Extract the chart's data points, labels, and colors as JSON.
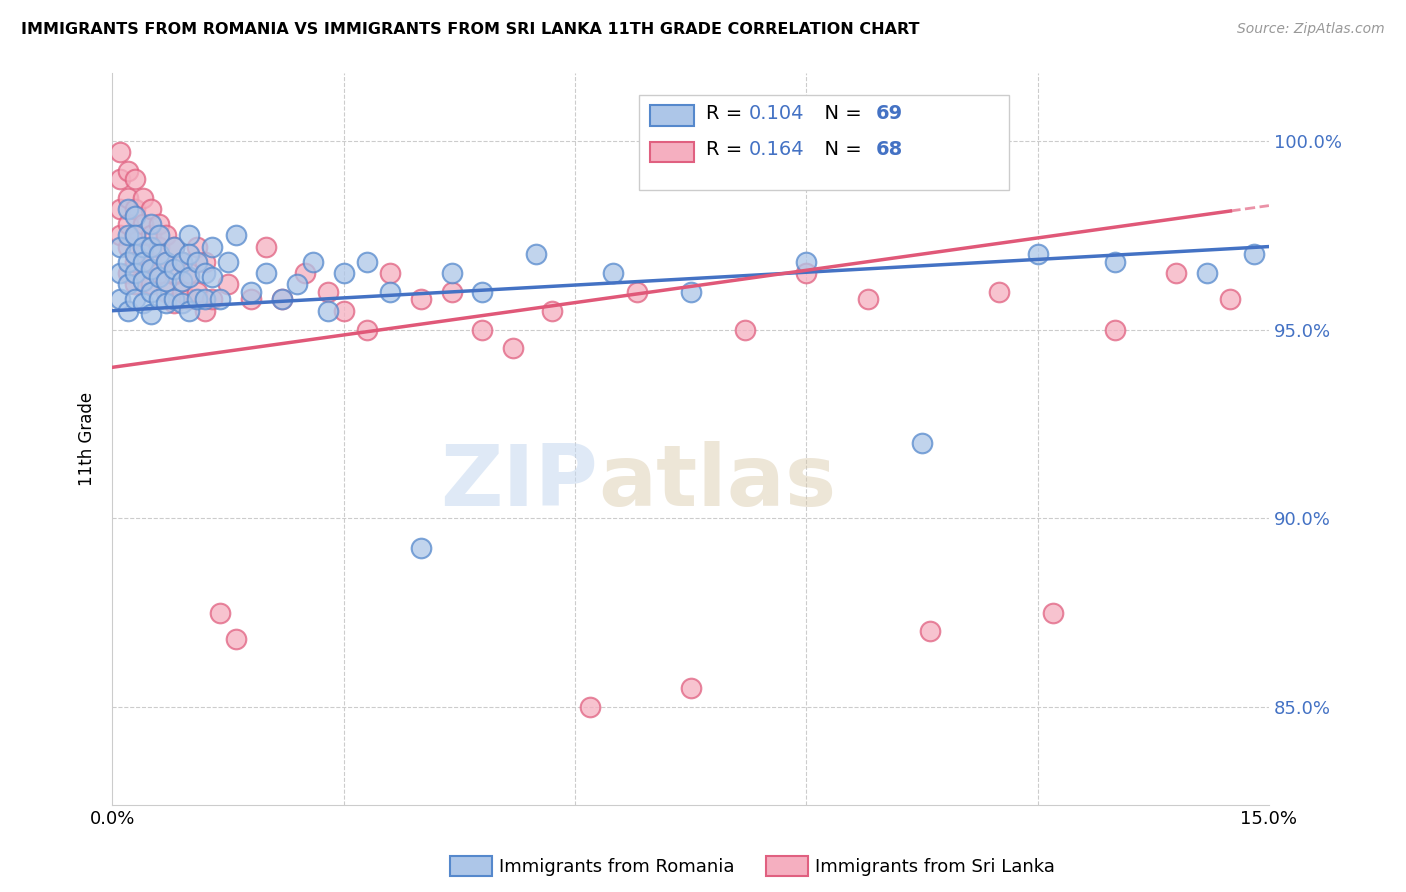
{
  "title": "IMMIGRANTS FROM ROMANIA VS IMMIGRANTS FROM SRI LANKA 11TH GRADE CORRELATION CHART",
  "source": "Source: ZipAtlas.com",
  "ylabel": "11th Grade",
  "xlim": [
    0.0,
    0.15
  ],
  "ylim": [
    0.824,
    1.018
  ],
  "xtick_positions": [
    0.0,
    0.03,
    0.06,
    0.09,
    0.12,
    0.15
  ],
  "xtick_labels": [
    "0.0%",
    "",
    "",
    "",
    "",
    "15.0%"
  ],
  "ytick_positions": [
    0.85,
    0.9,
    0.95,
    1.0
  ],
  "ytick_labels": [
    "85.0%",
    "90.0%",
    "95.0%",
    "100.0%"
  ],
  "romania_R": 0.104,
  "romania_N": 69,
  "srilanka_R": 0.164,
  "srilanka_N": 68,
  "romania_color": "#adc6e8",
  "srilanka_color": "#f5afc0",
  "romania_edge_color": "#5588cc",
  "srilanka_edge_color": "#e06080",
  "romania_line_color": "#4472c4",
  "srilanka_line_color": "#e05878",
  "watermark_zip": "ZIP",
  "watermark_atlas": "atlas",
  "romania_x": [
    0.001,
    0.001,
    0.001,
    0.002,
    0.002,
    0.002,
    0.002,
    0.002,
    0.003,
    0.003,
    0.003,
    0.003,
    0.003,
    0.004,
    0.004,
    0.004,
    0.004,
    0.005,
    0.005,
    0.005,
    0.005,
    0.005,
    0.006,
    0.006,
    0.006,
    0.006,
    0.007,
    0.007,
    0.007,
    0.008,
    0.008,
    0.008,
    0.009,
    0.009,
    0.009,
    0.01,
    0.01,
    0.01,
    0.01,
    0.011,
    0.011,
    0.012,
    0.012,
    0.013,
    0.013,
    0.014,
    0.015,
    0.016,
    0.018,
    0.02,
    0.022,
    0.024,
    0.026,
    0.028,
    0.03,
    0.033,
    0.036,
    0.04,
    0.044,
    0.048,
    0.055,
    0.065,
    0.075,
    0.09,
    0.105,
    0.12,
    0.13,
    0.142,
    0.148
  ],
  "romania_y": [
    0.972,
    0.965,
    0.958,
    0.982,
    0.975,
    0.968,
    0.962,
    0.955,
    0.98,
    0.975,
    0.97,
    0.965,
    0.958,
    0.972,
    0.968,
    0.963,
    0.957,
    0.978,
    0.972,
    0.966,
    0.96,
    0.954,
    0.975,
    0.97,
    0.964,
    0.958,
    0.968,
    0.963,
    0.957,
    0.972,
    0.966,
    0.958,
    0.968,
    0.963,
    0.957,
    0.975,
    0.97,
    0.964,
    0.955,
    0.968,
    0.958,
    0.965,
    0.958,
    0.972,
    0.964,
    0.958,
    0.968,
    0.975,
    0.96,
    0.965,
    0.958,
    0.962,
    0.968,
    0.955,
    0.965,
    0.968,
    0.96,
    0.892,
    0.965,
    0.96,
    0.97,
    0.965,
    0.96,
    0.968,
    0.92,
    0.97,
    0.968,
    0.965,
    0.97
  ],
  "srilanka_x": [
    0.001,
    0.001,
    0.001,
    0.001,
    0.002,
    0.002,
    0.002,
    0.002,
    0.002,
    0.003,
    0.003,
    0.003,
    0.003,
    0.003,
    0.004,
    0.004,
    0.004,
    0.004,
    0.005,
    0.005,
    0.005,
    0.005,
    0.006,
    0.006,
    0.006,
    0.007,
    0.007,
    0.007,
    0.008,
    0.008,
    0.008,
    0.009,
    0.009,
    0.01,
    0.01,
    0.011,
    0.011,
    0.012,
    0.012,
    0.013,
    0.014,
    0.015,
    0.016,
    0.018,
    0.02,
    0.022,
    0.025,
    0.028,
    0.03,
    0.033,
    0.036,
    0.04,
    0.044,
    0.048,
    0.052,
    0.057,
    0.062,
    0.068,
    0.075,
    0.082,
    0.09,
    0.098,
    0.106,
    0.115,
    0.122,
    0.13,
    0.138,
    0.145
  ],
  "srilanka_y": [
    0.997,
    0.99,
    0.982,
    0.975,
    0.992,
    0.985,
    0.978,
    0.972,
    0.965,
    0.99,
    0.982,
    0.975,
    0.968,
    0.962,
    0.985,
    0.978,
    0.97,
    0.963,
    0.982,
    0.975,
    0.968,
    0.962,
    0.978,
    0.972,
    0.965,
    0.975,
    0.968,
    0.96,
    0.972,
    0.965,
    0.957,
    0.968,
    0.96,
    0.965,
    0.958,
    0.972,
    0.96,
    0.968,
    0.955,
    0.958,
    0.875,
    0.962,
    0.868,
    0.958,
    0.972,
    0.958,
    0.965,
    0.96,
    0.955,
    0.95,
    0.965,
    0.958,
    0.96,
    0.95,
    0.945,
    0.955,
    0.85,
    0.96,
    0.855,
    0.95,
    0.965,
    0.958,
    0.87,
    0.96,
    0.875,
    0.95,
    0.965,
    0.958
  ]
}
